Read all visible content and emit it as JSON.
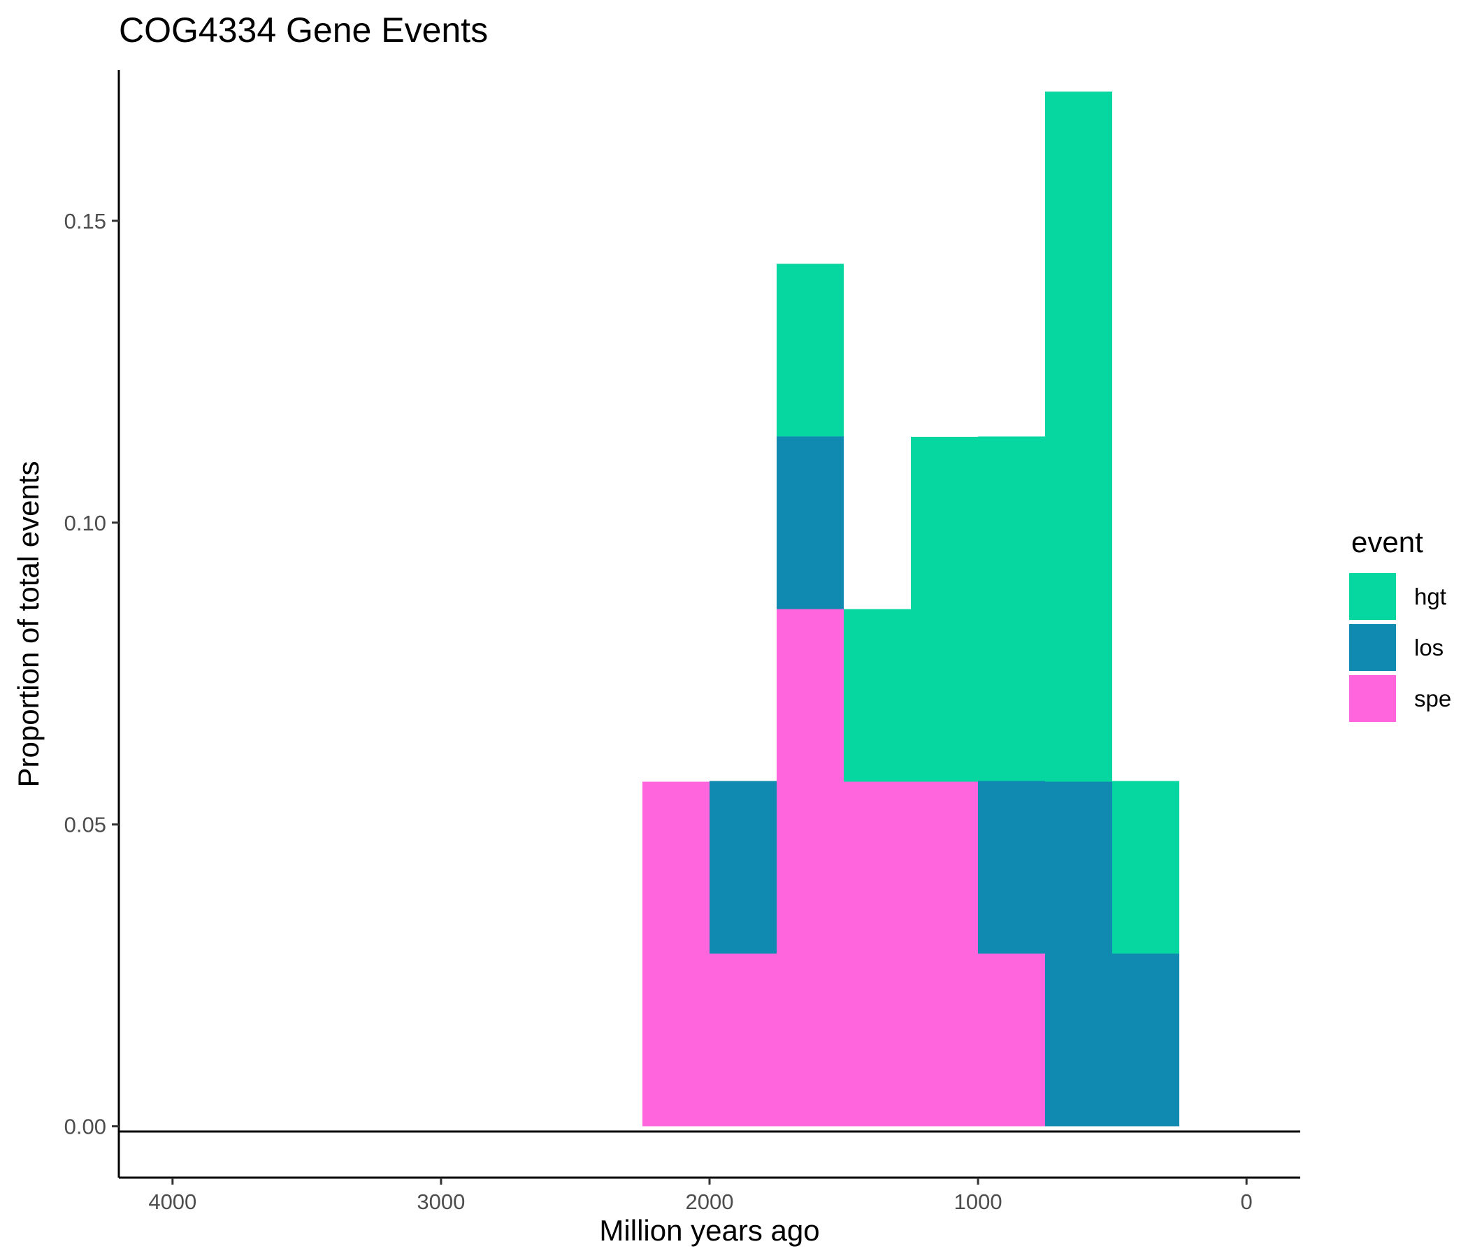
{
  "chart_data": {
    "type": "bar",
    "stacked": true,
    "title": "COG4334 Gene Events",
    "xlabel": "Million years ago",
    "ylabel": "Proportion of total events",
    "x_reversed": true,
    "xlim": [
      4200,
      -200
    ],
    "ylim": [
      -0.0085,
      0.175
    ],
    "x_ticks": [
      4000,
      3000,
      2000,
      1000,
      0
    ],
    "x_tick_labels": [
      "4000",
      "3000",
      "2000",
      "1000",
      "0"
    ],
    "y_ticks": [
      0.0,
      0.05,
      0.1,
      0.15
    ],
    "y_tick_labels": [
      "0.00",
      "0.05",
      "0.10",
      "0.15"
    ],
    "bin_width": 250,
    "bin_centers": [
      2125,
      1875,
      1625,
      1375,
      1125,
      875,
      625,
      375
    ],
    "grid": false,
    "legend": {
      "title": "event",
      "position": "right",
      "entries": [
        "hgt",
        "los",
        "spe"
      ]
    },
    "stack_order": [
      "spe",
      "los",
      "hgt"
    ],
    "series": [
      {
        "name": "hgt",
        "color": "#06D6A0",
        "values": [
          0,
          0,
          0.0286,
          0.0286,
          0.0571,
          0.0571,
          0.1143,
          0.0286
        ]
      },
      {
        "name": "los",
        "color": "#118AB2",
        "values": [
          0,
          0.0286,
          0.0286,
          0,
          0,
          0.0286,
          0.0571,
          0.0286
        ]
      },
      {
        "name": "spe",
        "color": "#FF66DE",
        "values": [
          0.0571,
          0.0286,
          0.0857,
          0.0571,
          0.0571,
          0.0286,
          0,
          0
        ]
      }
    ]
  }
}
